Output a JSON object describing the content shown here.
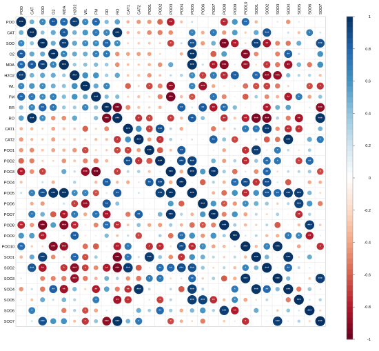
{
  "chart_data": {
    "type": "heatmap",
    "title": "",
    "style": "circle-correlation-matrix",
    "variables": [
      "POD",
      "CAT",
      "SOD",
      "O2",
      "MDA",
      "H2O2",
      "WL",
      "FM",
      "RR",
      "RO",
      "CAT1",
      "CAT2",
      "POD1",
      "POD2",
      "POD3",
      "POD4",
      "POD5",
      "POD6",
      "POD7",
      "POD8",
      "POD9",
      "POD10",
      "SOD1",
      "SOD2",
      "SOD3",
      "SOD4",
      "SOD5",
      "SOD6",
      "SOD7"
    ],
    "significance_marker": "*",
    "colorbar": {
      "min": -1,
      "max": 1,
      "ticks": [
        -1,
        -0.8,
        -0.6,
        -0.4,
        -0.2,
        0,
        0.2,
        0.4,
        0.6,
        0.8,
        1
      ],
      "colors": [
        "#67001f",
        "#b2182b",
        "#d6604d",
        "#f4a582",
        "#fddbc7",
        "#ffffff",
        "#d1e5f0",
        "#92c5de",
        "#4393c3",
        "#2166ac",
        "#053061"
      ],
      "placement": "right"
    },
    "legend_placement": "right",
    "grid": true
  }
}
